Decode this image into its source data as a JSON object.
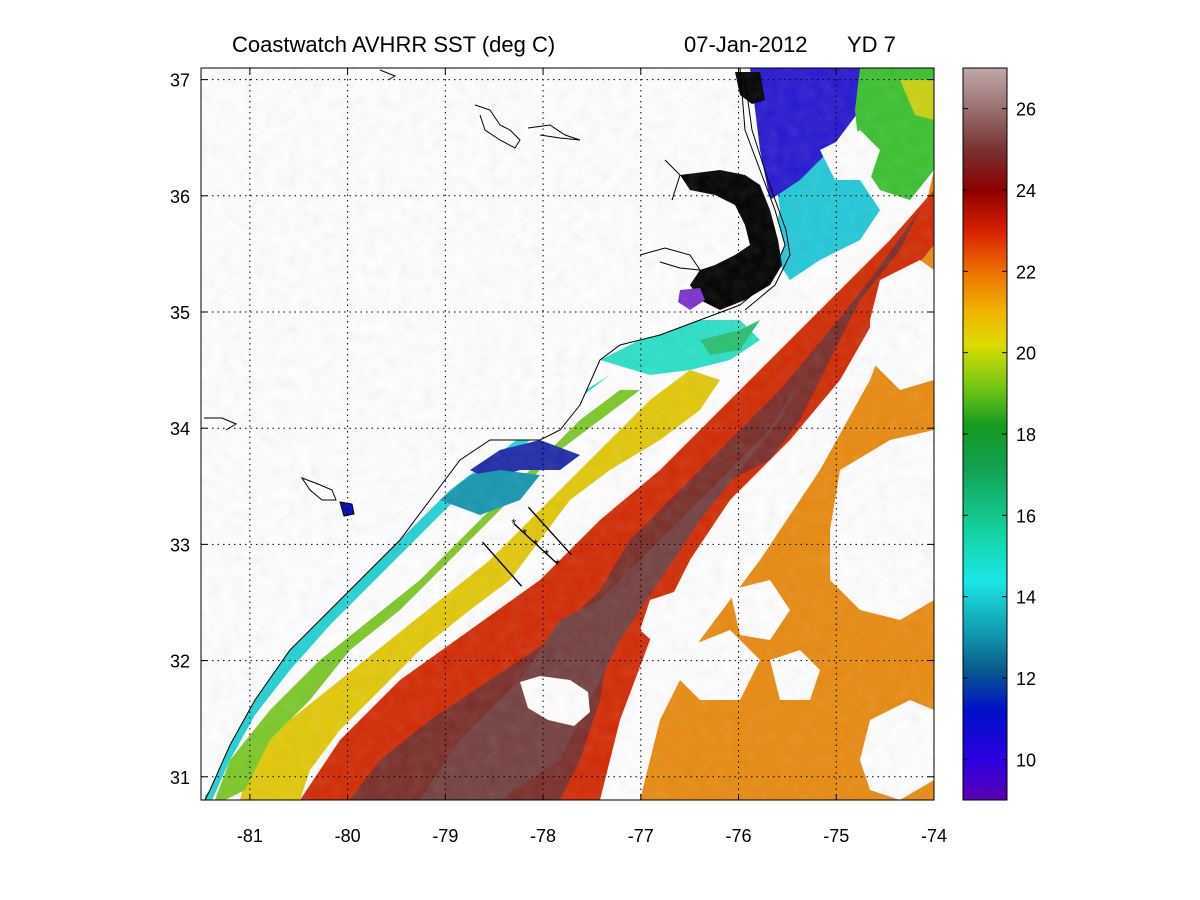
{
  "title": {
    "product": "Coastwatch   AVHRR   SST  (deg C)",
    "date": "07-Jan-2012",
    "yearday": "YD 7"
  },
  "map": {
    "lon_range": [
      -81.5,
      -74
    ],
    "lat_range": [
      30.8,
      37.1
    ],
    "lon_ticks": [
      "-81",
      "-80",
      "-79",
      "-78",
      "-77",
      "-76",
      "-75",
      "-74"
    ],
    "lat_ticks": [
      "31",
      "32",
      "33",
      "34",
      "35",
      "36",
      "37"
    ],
    "grid": "dotted",
    "cloud_fill": "#ffffff",
    "land_fill": "#ffffff",
    "coastline_color": "#000000",
    "transect_lines": [
      {
        "from": [
          -78.62,
          33.02
        ],
        "to": [
          -78.22,
          32.64
        ]
      },
      {
        "from": [
          -78.15,
          33.32
        ],
        "to": [
          -77.71,
          32.91
        ]
      },
      {
        "from": [
          -78.3,
          33.18
        ],
        "to": [
          -77.85,
          32.83
        ],
        "markers": true
      }
    ]
  },
  "colorbar": {
    "range": [
      9,
      27
    ],
    "ticks": [
      "10",
      "12",
      "14",
      "16",
      "18",
      "20",
      "22",
      "24",
      "26"
    ],
    "stops": [
      {
        "value": 9.0,
        "color": "#5a00b4"
      },
      {
        "value": 10.0,
        "color": "#2a00e0"
      },
      {
        "value": 11.2,
        "color": "#0010c8"
      },
      {
        "value": 12.2,
        "color": "#0a5a8c"
      },
      {
        "value": 13.2,
        "color": "#12a0b4"
      },
      {
        "value": 14.4,
        "color": "#1ae6e6"
      },
      {
        "value": 15.6,
        "color": "#14d2a0"
      },
      {
        "value": 17.2,
        "color": "#12a050"
      },
      {
        "value": 18.2,
        "color": "#169a20"
      },
      {
        "value": 19.2,
        "color": "#78c814"
      },
      {
        "value": 20.2,
        "color": "#dcdc00"
      },
      {
        "value": 21.0,
        "color": "#f0b400"
      },
      {
        "value": 22.0,
        "color": "#ee7000"
      },
      {
        "value": 23.0,
        "color": "#d82000"
      },
      {
        "value": 24.0,
        "color": "#8c0000"
      },
      {
        "value": 25.0,
        "color": "#783232"
      },
      {
        "value": 26.0,
        "color": "#9a7070"
      },
      {
        "value": 27.0,
        "color": "#c0a8a8"
      }
    ]
  }
}
